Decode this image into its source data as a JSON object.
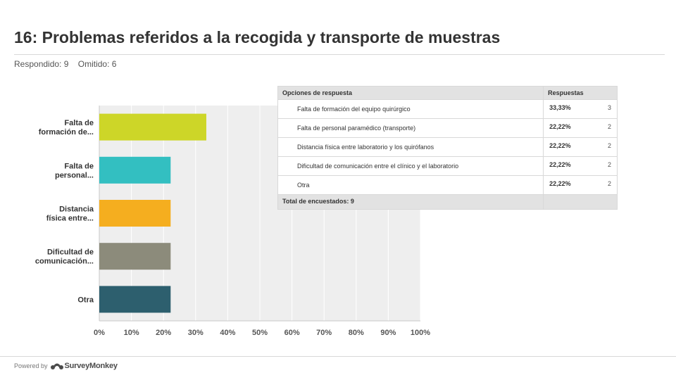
{
  "header": {
    "title": "16: Problemas referidos a la recogida y transporte de muestras",
    "answered": "Respondido: 9",
    "skipped": "Omitido: 6"
  },
  "chart_data": {
    "type": "bar",
    "orientation": "horizontal",
    "categories": [
      [
        "Falta de",
        "formación de..."
      ],
      [
        "Falta de",
        "personal..."
      ],
      [
        "Distancia",
        "física entre..."
      ],
      [
        "Dificultad de",
        "comunicación..."
      ],
      [
        "Otra"
      ]
    ],
    "values": [
      33.33,
      22.22,
      22.22,
      22.22,
      22.22
    ],
    "colors": [
      "#cdd628",
      "#33bfc1",
      "#f5ae1f",
      "#8c8b7b",
      "#2d5f6e"
    ],
    "xlim": [
      0,
      100
    ],
    "xticks": [
      "0%",
      "10%",
      "20%",
      "30%",
      "40%",
      "50%",
      "60%",
      "70%",
      "80%",
      "90%",
      "100%"
    ],
    "grid": true,
    "background": "#eeeeee"
  },
  "table": {
    "headers": {
      "option": "Opciones de respuesta",
      "responses": "Respuestas"
    },
    "rows": [
      {
        "option": "Falta de formación del equipo quirúrgico",
        "percent": "33,33%",
        "count": "3"
      },
      {
        "option": "Falta de personal paramédico (transporte)",
        "percent": "22,22%",
        "count": "2"
      },
      {
        "option": "Distancia física entre laboratorio y los quirófanos",
        "percent": "22,22%",
        "count": "2"
      },
      {
        "option": "Dificultad de comunicación entre el clínico y el laboratorio",
        "percent": "22,22%",
        "count": "2"
      },
      {
        "option": "Otra",
        "percent": "22,22%",
        "count": "2"
      }
    ],
    "total": "Total de encuestados: 9"
  },
  "footer": {
    "powered_by": "Powered by",
    "brand": "SurveyMonkey"
  }
}
